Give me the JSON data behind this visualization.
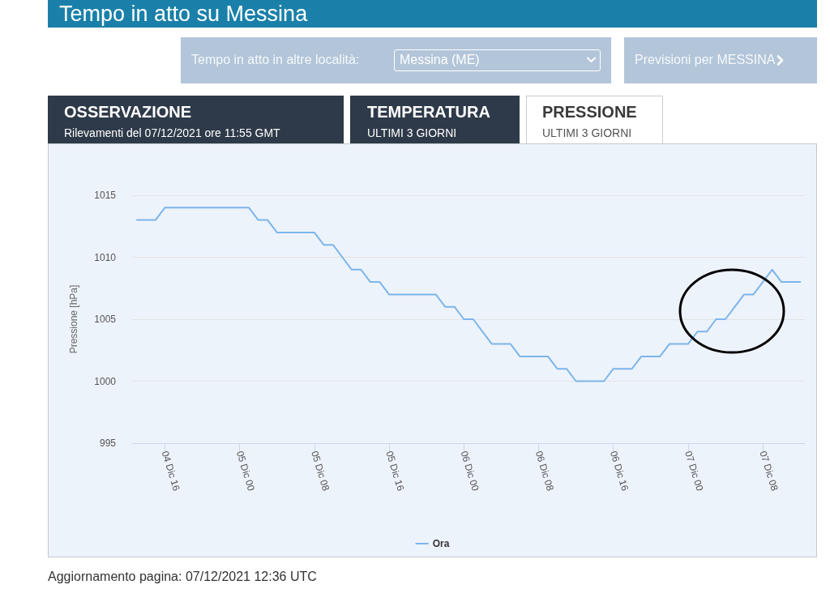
{
  "chart_data": {
    "type": "line",
    "title": "Tempo in atto su Messina",
    "ylabel": "Pressione [hPa]",
    "annotations": [
      "Tempo in atto in altre località:",
      "Messina (ME)",
      "Previsioni per MESSINA",
      "OSSERVAZIONE",
      "Rilevamenti del 07/12/2021 ore 11:55 GMT",
      "TEMPERATURA",
      "ULTIMI 3 GIORNI",
      "PRESSIONE",
      "ULTIMI 3 GIORNI",
      "Aggiornamento pagina: 07/12/2021 12:36 UTC"
    ],
    "categories": [
      null,
      null,
      null,
      "04 Dic 16",
      null,
      null,
      null,
      null,
      null,
      null,
      null,
      "05 Dic 00",
      null,
      null,
      null,
      null,
      null,
      null,
      null,
      "05 Dic 08",
      null,
      null,
      null,
      null,
      null,
      null,
      null,
      "05 Dic 16",
      null,
      null,
      null,
      null,
      null,
      null,
      null,
      "06 Dic 00",
      null,
      null,
      null,
      null,
      null,
      null,
      null,
      "06 Dic 08",
      null,
      null,
      null,
      null,
      null,
      null,
      null,
      "06 Dic 16",
      null,
      null,
      null,
      null,
      null,
      null,
      null,
      "07 Dic 00",
      null,
      null,
      null,
      null,
      null,
      null,
      null,
      "07 Dic 08",
      null,
      null,
      null,
      null
    ],
    "series": [
      {
        "name": "Ora",
        "color": "#7cb5ec",
        "values": [
          1013,
          1013,
          1013,
          1014,
          1014,
          1014,
          1014,
          1014,
          1014,
          1014,
          1014,
          1014,
          1014,
          1013,
          1013,
          1012,
          1012,
          1012,
          1012,
          1012,
          1011,
          1011,
          1010,
          1009,
          1009,
          1008,
          1008,
          1007,
          1007,
          1007,
          1007,
          1007,
          1007,
          1006,
          1006,
          1005,
          1005,
          1004,
          1003,
          1003,
          1003,
          1002,
          1002,
          1002,
          1002,
          1001,
          1001,
          1000,
          1000,
          1000,
          1000,
          1001,
          1001,
          1001,
          1002,
          1002,
          1002,
          1003,
          1003,
          1003,
          1004,
          1004,
          1005,
          1005,
          1006,
          1007,
          1007,
          1008,
          1009,
          1008,
          1008,
          1008
        ]
      }
    ],
    "ylim": [
      995,
      1015
    ],
    "yticks": [
      995,
      1000,
      1005,
      1010,
      1015
    ],
    "grid": "y",
    "legend": "bottom",
    "marker": "none",
    "line_style": "solid"
  }
}
